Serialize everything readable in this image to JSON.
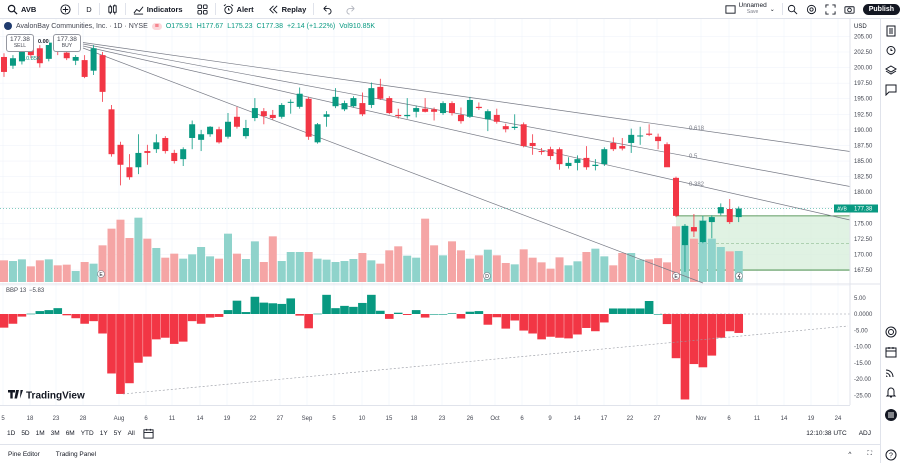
{
  "toolbar": {
    "symbol": "AVB",
    "interval": "D",
    "indicators_label": "Indicators",
    "alert_label": "Alert",
    "replay_label": "Replay",
    "layout_name": "Unnamed",
    "layout_sub": "Save",
    "publish_label": "Publish"
  },
  "legend": {
    "title": "AvalonBay Communities, Inc. · 1D · NYSE",
    "open": "O175.91",
    "high": "H177.67",
    "low": "L175.23",
    "close": "C177.38",
    "change": "+2.14 (+1.22%)",
    "volume": "Vol910.85K",
    "sell_price": "177.38",
    "sell_label": "SELL",
    "spread": "0.00",
    "buy_price": "177.38",
    "buy_label": "BUY",
    "vol_sub": "910.85K"
  },
  "price_axis": {
    "currency": "USD",
    "ticks": [
      "205.00",
      "202.50",
      "200.00",
      "197.50",
      "195.00",
      "192.50",
      "190.00",
      "187.50",
      "185.00",
      "182.50",
      "180.00",
      "175.00",
      "172.50",
      "170.00",
      "167.50"
    ],
    "last_price": "177.38",
    "last_symbol": "AVB"
  },
  "indicator": {
    "name": "BBP 13",
    "value": "−5.83",
    "ticks": [
      "5.00",
      "0.0000",
      "-5.00",
      "-10.00",
      "-15.00",
      "-20.00",
      "-25.00"
    ]
  },
  "fib_labels": [
    "0.618",
    "0.5",
    "0.382"
  ],
  "event_markers": [
    "E",
    "D",
    "E"
  ],
  "watermark": "TradingView",
  "date_axis": [
    "5",
    "18",
    "23",
    "28",
    "Aug",
    "6",
    "11",
    "14",
    "19",
    "22",
    "27",
    "Sep",
    "5",
    "10",
    "15",
    "18",
    "23",
    "26",
    "Oct",
    "6",
    "9",
    "14",
    "17",
    "22",
    "27",
    "Nov",
    "6",
    "11",
    "14",
    "19",
    "24"
  ],
  "ranges": [
    "1D",
    "5D",
    "1M",
    "3M",
    "6M",
    "YTD",
    "1Y",
    "5Y",
    "All"
  ],
  "clock": "12:10:38 UTC",
  "adj_label": "ADJ",
  "bottom_tabs": [
    "Pine Editor",
    "Trading Panel"
  ],
  "colors": {
    "up": "#089981",
    "down": "#f23645",
    "vol_up": "#8fd3cb",
    "vol_down": "#f5a5a5",
    "zone": "#d6eed9"
  },
  "chart_data": {
    "type": "candlestick",
    "ohlc": [
      [
        201.7,
        202.3,
        198.5,
        199.3
      ],
      [
        200.3,
        202,
        199.8,
        201.5
      ],
      [
        201,
        203.5,
        200.5,
        203
      ],
      [
        203,
        203.8,
        201.5,
        202
      ],
      [
        203.1,
        203.6,
        200,
        200.7
      ],
      [
        201.4,
        204.5,
        201,
        204
      ],
      [
        203.5,
        204,
        202,
        202.8
      ],
      [
        202.4,
        203,
        201.2,
        201.5
      ],
      [
        201.1,
        202,
        200.4,
        201.7
      ],
      [
        201.2,
        202,
        198.3,
        198.5
      ],
      [
        199.5,
        203.6,
        198.8,
        203.1
      ],
      [
        202,
        202.5,
        194.5,
        196.1
      ],
      [
        193.3,
        194,
        185.7,
        186.1
      ],
      [
        187.6,
        188.1,
        181.1,
        184.4
      ],
      [
        184,
        186.1,
        182,
        182.4
      ],
      [
        184,
        189.3,
        182.9,
        186.3
      ],
      [
        186.6,
        187.6,
        184.4,
        186.3
      ],
      [
        186.9,
        189.3,
        186.3,
        188
      ],
      [
        188.7,
        189,
        186.2,
        186.6
      ],
      [
        186.3,
        186.8,
        184.6,
        185
      ],
      [
        185.3,
        187.2,
        184.2,
        186.9
      ],
      [
        188.7,
        191.5,
        186.9,
        190.9
      ],
      [
        188.4,
        190,
        186.6,
        189.3
      ],
      [
        189.3,
        190.6,
        188.9,
        190.5
      ],
      [
        190.1,
        190.5,
        187.8,
        188
      ],
      [
        188.9,
        192.7,
        188.6,
        191.3
      ],
      [
        192.1,
        193.7,
        190.2,
        190.5
      ],
      [
        189,
        191.6,
        188.6,
        190.3
      ],
      [
        191.9,
        195.1,
        191.4,
        193.5
      ],
      [
        193,
        193.5,
        190.9,
        192.2
      ],
      [
        192.4,
        193.2,
        191.6,
        191.9
      ],
      [
        192.1,
        194.3,
        191.8,
        194
      ],
      [
        194.4,
        194.9,
        192.6,
        194.5
      ],
      [
        193.7,
        196.8,
        193.4,
        195.8
      ],
      [
        195,
        195.3,
        188.4,
        188.9
      ],
      [
        188,
        191.1,
        187.8,
        190.9
      ],
      [
        192.1,
        193,
        190.5,
        192.5
      ],
      [
        193.8,
        196.7,
        193.5,
        195.3
      ],
      [
        193.3,
        194.7,
        193,
        194.3
      ],
      [
        193.8,
        195.4,
        193.6,
        195.1
      ],
      [
        194.3,
        196,
        192.2,
        192.5
      ],
      [
        194,
        197.6,
        193.5,
        196.7
      ],
      [
        196.9,
        198.2,
        194.8,
        195
      ],
      [
        195.1,
        195.4,
        192.5,
        192.7
      ],
      [
        192.4,
        193.4,
        191.8,
        192.2
      ],
      [
        192.2,
        195.1,
        191.8,
        192.4
      ],
      [
        192.9,
        193.9,
        192,
        193.5
      ],
      [
        193.4,
        195.1,
        192.8,
        192.9
      ],
      [
        193.3,
        193.6,
        191.5,
        192.9
      ],
      [
        192.7,
        194.6,
        192.4,
        194.3
      ],
      [
        194.3,
        194.6,
        192.3,
        192.7
      ],
      [
        192.4,
        193.6,
        191,
        191.4
      ],
      [
        192.1,
        195.3,
        191.9,
        194.8
      ],
      [
        193.7,
        194.4,
        193.2,
        193.5
      ],
      [
        191.7,
        193.3,
        189.8,
        193
      ],
      [
        192.4,
        193.4,
        191,
        191.3
      ],
      [
        190.6,
        191,
        189.6,
        190.1
      ],
      [
        190.3,
        192.5,
        190,
        190.5
      ],
      [
        190.9,
        191.2,
        187.2,
        187.4
      ],
      [
        187.9,
        189.3,
        186,
        187.4
      ],
      [
        186.6,
        187.1,
        186,
        186.5
      ],
      [
        186.9,
        187.3,
        185.2,
        185.8
      ],
      [
        186.9,
        187.2,
        183.6,
        184.5
      ],
      [
        184.2,
        185.6,
        183.8,
        184.7
      ],
      [
        184.7,
        185.9,
        183.5,
        185.3
      ],
      [
        185.5,
        187.4,
        183.6,
        184
      ],
      [
        184.2,
        185.3,
        183.5,
        184.4
      ],
      [
        184.5,
        187.2,
        184.2,
        186.9
      ],
      [
        187.9,
        188.8,
        186.6,
        186.9
      ],
      [
        187.4,
        188.7,
        186.7,
        187
      ],
      [
        187.9,
        190.2,
        186.3,
        189.2
      ],
      [
        189,
        190.5,
        187.6,
        189.1
      ],
      [
        189.4,
        190.9,
        189,
        189.2
      ],
      [
        188.9,
        189.4,
        186.9,
        188.2
      ],
      [
        187.7,
        188,
        184.2,
        184
      ],
      [
        182.3,
        182.5,
        176,
        176.2
      ],
      [
        171.5,
        174.9,
        167.2,
        174.6
      ],
      [
        174.4,
        176.5,
        172.8,
        173.7
      ],
      [
        172,
        176.2,
        171.8,
        175.4
      ],
      [
        175.2,
        176.3,
        172.6,
        176
      ],
      [
        176.6,
        178.2,
        176.3,
        177.6
      ],
      [
        177.3,
        178.9,
        174.9,
        175.2
      ],
      [
        176,
        177.7,
        175.2,
        177.38
      ]
    ],
    "volume_k": [
      637,
      617,
      666,
      460,
      637,
      666,
      490,
      510,
      323,
      588,
      539,
      1078,
      1568,
      1832,
      1294,
      1891,
      1274,
      1000,
      715,
      833,
      686,
      813,
      1029,
      754,
      686,
      1421,
      833,
      676,
      1195,
      588,
      1342,
      617,
      882,
      882,
      882,
      686,
      657,
      588,
      617,
      676,
      852,
      637,
      539,
      931,
      1049,
      774,
      715,
      1862,
      1078,
      784,
      1195,
      931,
      686,
      784,
      950,
      784,
      559,
      519,
      960,
      715,
      578,
      392,
      725,
      490,
      608,
      882,
      980,
      754,
      490,
      852,
      852,
      657,
      666,
      700,
      578,
      1637,
      1646,
      1274,
      1813,
      1274,
      1029,
      901,
      910.85
    ],
    "bbp": [
      -4.2,
      -3,
      -0.8,
      0.1,
      0.9,
      1.2,
      1.8,
      -0.4,
      -1.3,
      -3,
      -2.2,
      -6,
      -18.3,
      -24.6,
      -21.3,
      -15,
      -13.1,
      -7.8,
      -7.3,
      -9.2,
      -8.5,
      -2.2,
      -3,
      -1.1,
      -0.9,
      1.2,
      4.1,
      0.6,
      5.3,
      3.5,
      3.3,
      3.1,
      4.8,
      -0.5,
      -4.4,
      0.1,
      5.9,
      1.8,
      2.5,
      2.2,
      3.4,
      5.9,
      1,
      -1.5,
      0.4,
      -0.3,
      1.2,
      -1.1,
      0,
      0,
      0.2,
      -1.4,
      0.7,
      0.9,
      -3.3,
      -1,
      -4.5,
      -2,
      -5.1,
      -6,
      -7.8,
      -7,
      -7.3,
      -7.5,
      -6.3,
      -4.3,
      -5.3,
      -2.6,
      1.7,
      1.7,
      1.7,
      1.7,
      4,
      0,
      -3.1,
      -13.6,
      -26.3,
      -15.4,
      -16.4,
      -12.8,
      -7.3,
      -5.3,
      -5.83
    ],
    "price_range": [
      166,
      206
    ],
    "bbp_range": [
      -27,
      7
    ],
    "last_close": 177.38,
    "zone": [
      167.5,
      176.2
    ],
    "zone_mid": 171.8
  }
}
